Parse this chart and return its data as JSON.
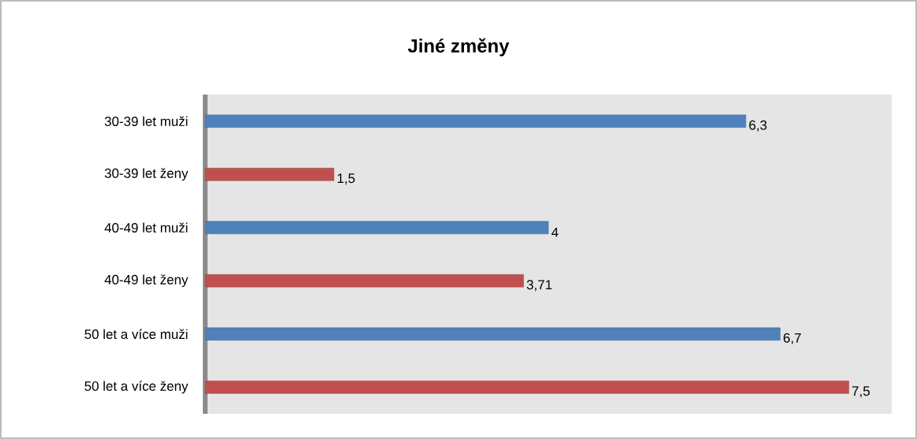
{
  "chart_data": {
    "type": "bar",
    "orientation": "horizontal",
    "title": "Jiné změny",
    "categories": [
      "30-39 let muži",
      "30-39 let ženy",
      "40-49 let muži",
      "40-49 let ženy",
      "50 let a více muži",
      "50 let a více ženy"
    ],
    "values": [
      6.3,
      1.5,
      4,
      3.71,
      6.7,
      7.5
    ],
    "colors": [
      "#4f81bd",
      "#c0504d",
      "#4f81bd",
      "#c0504d",
      "#4f81bd",
      "#c0504d"
    ],
    "value_labels": [
      "6,3",
      "1,5",
      "4",
      "3,71",
      "6,7",
      "7,5"
    ],
    "xlim": [
      0,
      8
    ]
  }
}
